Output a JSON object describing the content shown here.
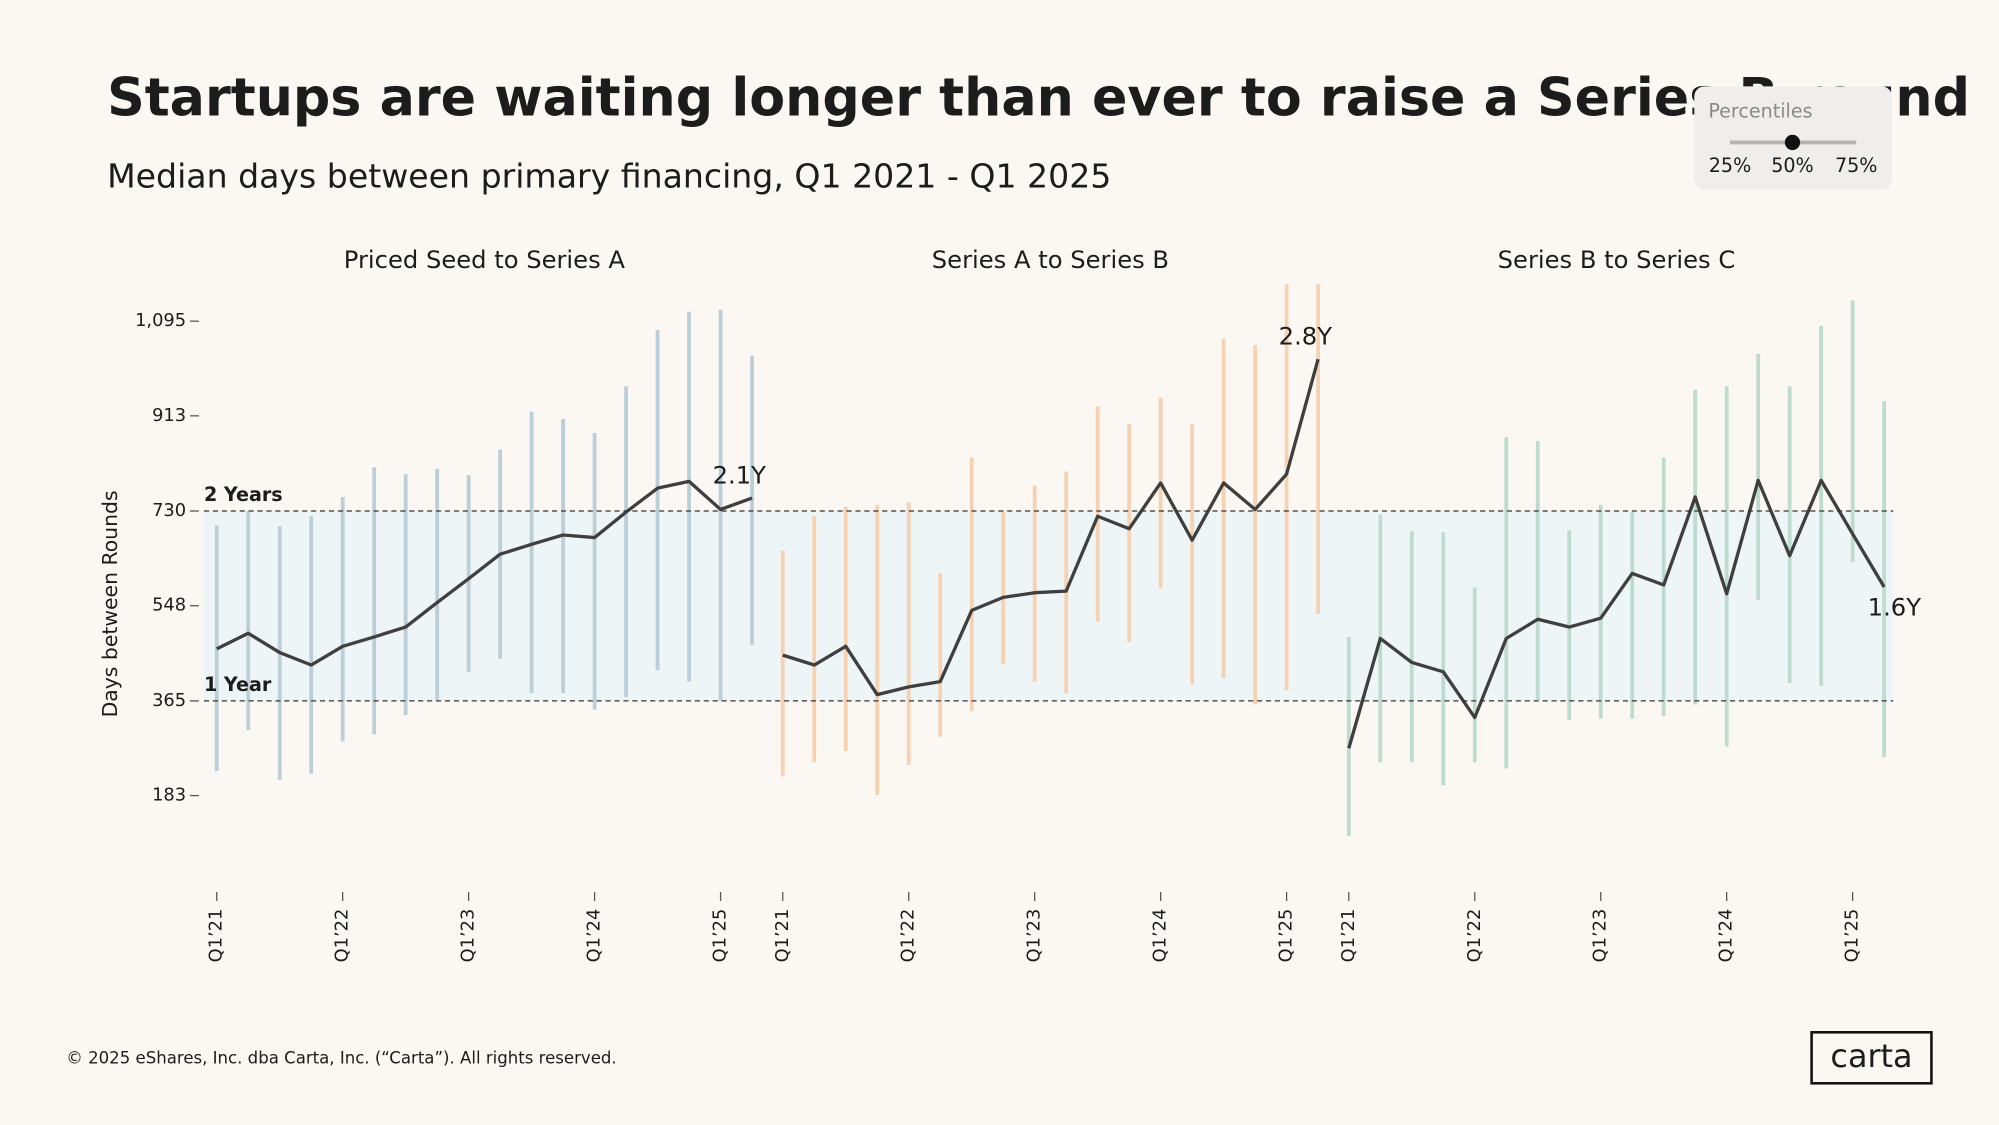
{
  "header": {
    "title": "Startups are waiting longer than ever to raise a Series B round",
    "subtitle": "Median days between primary financing, Q1 2021 - Q1 2025"
  },
  "controls": {
    "title": "Percentiles",
    "options": [
      "25%",
      "50%",
      "75%"
    ]
  },
  "chart_data": [
    {
      "type": "line",
      "title": "Priced Seed to Series A",
      "ylabel": "Days between Rounds",
      "categories": [
        "Q1’21",
        null,
        null,
        null,
        "Q1’22",
        null,
        null,
        null,
        "Q1’23",
        null,
        null,
        null,
        "Q1’24",
        null,
        null,
        null,
        "Q1’25",
        null
      ],
      "values": [
        465,
        495,
        458,
        434,
        470,
        488,
        507,
        554,
        600,
        647,
        666,
        684,
        679,
        728,
        774,
        787,
        733,
        755
      ],
      "value_labels": [
        null,
        null,
        null,
        null,
        null,
        null,
        null,
        null,
        null,
        null,
        null,
        null,
        null,
        null,
        null,
        null,
        null,
        "2.1Y"
      ],
      "low": [
        230,
        309,
        213,
        225,
        287,
        301,
        338,
        367,
        421,
        446,
        380,
        380,
        348,
        372,
        424,
        402,
        365,
        473
      ],
      "high": [
        703,
        730,
        701,
        720,
        757,
        814,
        801,
        811,
        799,
        848,
        921,
        907,
        880,
        970,
        1078,
        1113,
        1117,
        1029
      ],
      "color": "#3f3f3f",
      "range_color": "#bccfd8",
      "ylim": [
        0,
        1170
      ],
      "yticks": [
        183,
        365,
        548,
        730,
        913,
        {
          "value": 1095,
          "label": "1,095"
        }
      ],
      "reference_lines": [
        {
          "value": 730,
          "label": "2 Years"
        },
        {
          "value": 365,
          "label": "1 Year"
        }
      ],
      "band_color": "#eef5f6"
    },
    {
      "type": "line",
      "title": "Series A to Series B",
      "categories": [
        "Q1’21",
        null,
        null,
        null,
        "Q1’22",
        null,
        null,
        null,
        "Q1’23",
        null,
        null,
        null,
        "Q1’24",
        null,
        null,
        null,
        "Q1’25",
        null
      ],
      "values": [
        453,
        434,
        470,
        377,
        392,
        402,
        539,
        564,
        573,
        576,
        720,
        696,
        784,
        674,
        784,
        733,
        801,
        1022
      ],
      "value_labels": [
        null,
        null,
        null,
        null,
        null,
        null,
        null,
        null,
        null,
        null,
        null,
        null,
        null,
        null,
        null,
        null,
        null,
        "2.8Y"
      ],
      "low": [
        220,
        247,
        269,
        184,
        242,
        296,
        345,
        436,
        402,
        380,
        517,
        478,
        581,
        397,
        409,
        358,
        385,
        532
      ],
      "high": [
        654,
        720,
        738,
        742,
        747,
        610,
        833,
        730,
        779,
        806,
        931,
        897,
        948,
        897,
        1061,
        1049,
        1166,
        1166
      ],
      "color": "#3f3f3f",
      "range_color": "#f6d2b3",
      "ylim": [
        0,
        1170
      ]
    },
    {
      "type": "line",
      "title": "Series B to Series C",
      "categories": [
        "Q1’21",
        null,
        null,
        null,
        "Q1’22",
        null,
        null,
        null,
        "Q1’23",
        null,
        null,
        null,
        "Q1’24",
        null,
        null,
        null,
        "Q1’25",
        null
      ],
      "values": [
        274,
        485,
        439,
        421,
        333,
        485,
        522,
        507,
        524,
        610,
        588,
        757,
        571,
        789,
        644,
        789,
        686,
        584
      ],
      "value_labels": [
        null,
        null,
        null,
        null,
        null,
        null,
        null,
        null,
        null,
        null,
        null,
        null,
        null,
        null,
        null,
        null,
        null,
        "1.6Y"
      ],
      "low": [
        105,
        247,
        247,
        203,
        247,
        235,
        367,
        328,
        331,
        331,
        336,
        358,
        277,
        559,
        399,
        394,
        632,
        257
      ],
      "high": [
        488,
        723,
        691,
        689,
        583,
        872,
        865,
        693,
        742,
        728,
        833,
        963,
        970,
        1032,
        970,
        1086,
        1135,
        941
      ],
      "color": "#3f3f3f",
      "range_color": "#bddbcf",
      "ylim": [
        0,
        1170
      ]
    }
  ],
  "footer": "© 2025 eShares, Inc. dba Carta, Inc. (“Carta”). All rights reserved.",
  "logo": "carta"
}
